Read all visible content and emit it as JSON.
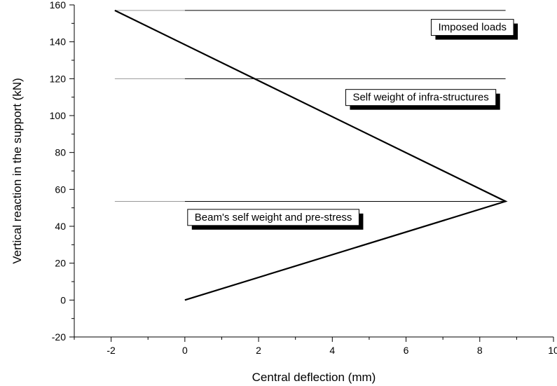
{
  "chart_data": {
    "type": "line",
    "xlabel": "Central deflection (mm)",
    "ylabel": "Vertical reaction in the support (kN)",
    "xlim": [
      -3,
      10
    ],
    "ylim": [
      -20,
      160
    ],
    "x_ticks": [
      -2,
      0,
      2,
      4,
      6,
      8,
      10
    ],
    "y_ticks": [
      -20,
      0,
      20,
      40,
      60,
      80,
      100,
      120,
      140,
      160
    ],
    "grid": false,
    "series": [
      {
        "x": [
          0,
          8.7,
          -1.9
        ],
        "y": [
          0,
          53.5,
          157
        ]
      }
    ],
    "reference_lines": [
      {
        "y": 157,
        "x_start": -1.9,
        "x_end": 8.7
      },
      {
        "y": 120,
        "x_start": -1.9,
        "x_end": 8.7
      },
      {
        "y": 53.5,
        "x_start": -1.9,
        "x_end": 8.7
      }
    ],
    "annotations": [
      {
        "text": "Imposed loads",
        "x": 7.8,
        "y": 148
      },
      {
        "text": "Self weight of infra-structures",
        "x": 6.4,
        "y": 110
      },
      {
        "text": "Beam's self weight and pre-stress",
        "x": 2.4,
        "y": 45
      }
    ]
  }
}
